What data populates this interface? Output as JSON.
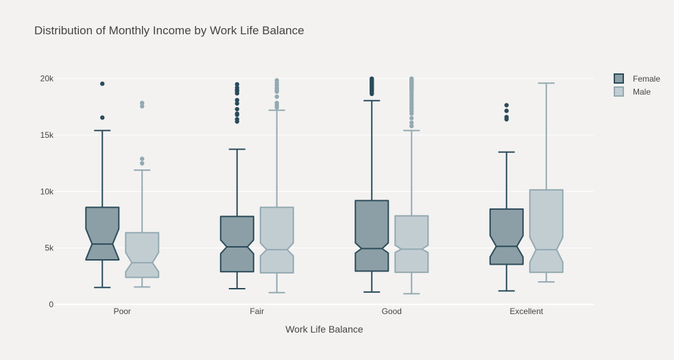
{
  "chart_data": {
    "type": "box",
    "title": "Distribution of Monthly Income by Work Life Balance",
    "xlabel": "Work Life Balance",
    "ylabel": "",
    "categories": [
      "Poor",
      "Fair",
      "Good",
      "Excellent"
    ],
    "ylim": [
      0,
      21500
    ],
    "yticks": [
      0,
      5000,
      10000,
      15000,
      20000
    ],
    "ytick_labels": [
      "0",
      "5k",
      "10k",
      "15k",
      "20k"
    ],
    "notched": true,
    "grid": true,
    "legend_position": "top-right",
    "series": [
      {
        "name": "Female",
        "fill": "#8c9fa6",
        "line": "#2b4b5a",
        "boxes": [
          {
            "category": "Poor",
            "lowerfence": 1500,
            "q1": 3950,
            "median": 5350,
            "q3": 8600,
            "upperfence": 15400,
            "notch_low": 4000,
            "notch_high": 6700,
            "outliers": [
              16550,
              19550
            ]
          },
          {
            "category": "Fair",
            "lowerfence": 1400,
            "q1": 2900,
            "median": 5100,
            "q3": 7800,
            "upperfence": 13750,
            "notch_low": 4500,
            "notch_high": 5700,
            "outliers": [
              16200,
              16400,
              16800,
              16900,
              17300,
              17800,
              18100,
              18700,
              18900,
              19000,
              19200,
              19500
            ]
          },
          {
            "category": "Good",
            "lowerfence": 1100,
            "q1": 2950,
            "median": 4950,
            "q3": 9200,
            "upperfence": 18050,
            "notch_low": 4550,
            "notch_high": 5450,
            "outliers": [
              18650,
              18750,
              18900,
              19000,
              19100,
              19200,
              19300,
              19400,
              19500,
              19600,
              19700,
              19800,
              19900,
              20000
            ]
          },
          {
            "category": "Excellent",
            "lowerfence": 1200,
            "q1": 3550,
            "median": 5150,
            "q3": 8450,
            "upperfence": 13500,
            "notch_low": 4200,
            "notch_high": 6100,
            "outliers": [
              16400,
              16600,
              17150,
              17650
            ]
          }
        ]
      },
      {
        "name": "Male",
        "fill": "#c2cdd2",
        "line": "#93a9b1",
        "boxes": [
          {
            "category": "Poor",
            "lowerfence": 1550,
            "q1": 2400,
            "median": 3700,
            "q3": 6350,
            "upperfence": 11900,
            "notch_low": 2900,
            "notch_high": 4600,
            "outliers": [
              12500,
              12900,
              17550,
              17850
            ]
          },
          {
            "category": "Fair",
            "lowerfence": 1050,
            "q1": 2800,
            "median": 4850,
            "q3": 8600,
            "upperfence": 17200,
            "notch_low": 4300,
            "notch_high": 5450,
            "outliers": [
              17450,
              17650,
              17850,
              18400,
              18850,
              19000,
              19150,
              19400,
              19600,
              19850
            ]
          },
          {
            "category": "Good",
            "lowerfence": 950,
            "q1": 2850,
            "median": 4900,
            "q3": 7850,
            "upperfence": 15400,
            "notch_low": 4600,
            "notch_high": 5250,
            "outliers": [
              15800,
              16100,
              16500,
              16900,
              17100,
              17300,
              17500,
              17700,
              17900,
              18100,
              18300,
              18500,
              18700,
              18900,
              19000,
              19100,
              19200,
              19300,
              19400,
              19500,
              19600,
              19700,
              19800,
              19900,
              20000
            ]
          },
          {
            "category": "Excellent",
            "lowerfence": 2000,
            "q1": 2850,
            "median": 4850,
            "q3": 10150,
            "upperfence": 19600,
            "notch_low": 3750,
            "notch_high": 5950,
            "outliers": []
          }
        ]
      }
    ]
  }
}
